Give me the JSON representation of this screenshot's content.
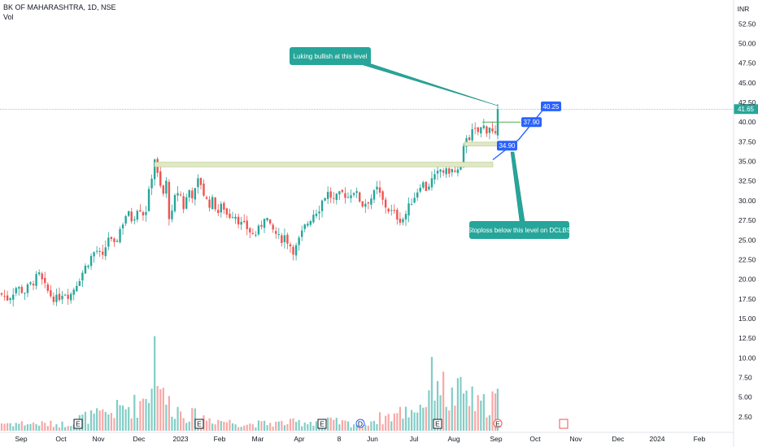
{
  "header": {
    "symbol": "BK OF MAHARASHTRA, 1D, NSE",
    "vol_label": "Vol",
    "currency": "INR"
  },
  "colors": {
    "up": "#26a69a",
    "down": "#ef5350",
    "vol_up": "#83cdc6",
    "vol_down": "#f7a9a7",
    "last_price": "#26a69a",
    "callout": "#26a69a",
    "target_tag": "#2962ff"
  },
  "chart_data": {
    "type": "candlestick",
    "series_name": "BK OF MAHARASHTRA",
    "y_ticks": [
      "2.50",
      "5.00",
      "7.50",
      "10.00",
      "12.50",
      "15.00",
      "17.50",
      "20.00",
      "22.50",
      "25.00",
      "27.50",
      "30.00",
      "32.50",
      "35.00",
      "37.50",
      "40.00",
      "42.50",
      "45.00",
      "47.50",
      "50.00",
      "52.50"
    ],
    "ylim": [
      0,
      54
    ],
    "x_ticks": [
      "Sep",
      "Oct",
      "Nov",
      "Dec",
      "2023",
      "Feb",
      "Mar",
      "Apr",
      "8",
      "Jun",
      "Jul",
      "Aug",
      "Sep",
      "Oct",
      "Nov",
      "Dec",
      "2024",
      "Feb"
    ],
    "last_price": "41.65",
    "price_path": [
      [
        0,
        18.2
      ],
      [
        10,
        17.5
      ],
      [
        20,
        19.0
      ],
      [
        30,
        18.4
      ],
      [
        40,
        19.6
      ],
      [
        48,
        20.5
      ],
      [
        55,
        19.0
      ],
      [
        62,
        18.0
      ],
      [
        70,
        17.4
      ],
      [
        78,
        18.5
      ],
      [
        86,
        17.9
      ],
      [
        94,
        19.5
      ],
      [
        102,
        21.0
      ],
      [
        110,
        22.5
      ],
      [
        118,
        23.8
      ],
      [
        126,
        22.5
      ],
      [
        133,
        25.5
      ],
      [
        140,
        24.0
      ],
      [
        148,
        26.5
      ],
      [
        156,
        28.5
      ],
      [
        163,
        27.5
      ],
      [
        170,
        29.5
      ],
      [
        178,
        28.0
      ],
      [
        184,
        31.5
      ],
      [
        190,
        35.5
      ],
      [
        194,
        33.0
      ],
      [
        200,
        30.5
      ],
      [
        205,
        32.5
      ],
      [
        209,
        26.5
      ],
      [
        214,
        30.0
      ],
      [
        220,
        31.5
      ],
      [
        226,
        29.0
      ],
      [
        232,
        31.5
      ],
      [
        238,
        30.5
      ],
      [
        245,
        33.0
      ],
      [
        250,
        31.0
      ],
      [
        256,
        29.5
      ],
      [
        262,
        30.0
      ],
      [
        268,
        28.5
      ],
      [
        274,
        29.5
      ],
      [
        280,
        28.0
      ],
      [
        288,
        28.5
      ],
      [
        296,
        27.0
      ],
      [
        304,
        26.5
      ],
      [
        312,
        25.5
      ],
      [
        320,
        26.5
      ],
      [
        326,
        28.5
      ],
      [
        332,
        26.5
      ],
      [
        338,
        26.0
      ],
      [
        344,
        25.0
      ],
      [
        350,
        25.5
      ],
      [
        356,
        24.5
      ],
      [
        362,
        23.5
      ],
      [
        368,
        25.0
      ],
      [
        374,
        26.5
      ],
      [
        380,
        27.5
      ],
      [
        386,
        28.5
      ],
      [
        392,
        29.0
      ],
      [
        398,
        30.5
      ],
      [
        404,
        31.0
      ],
      [
        410,
        30.0
      ],
      [
        416,
        30.5
      ],
      [
        422,
        31.0
      ],
      [
        428,
        30.5
      ],
      [
        434,
        31.5
      ],
      [
        440,
        30.5
      ],
      [
        446,
        29.5
      ],
      [
        452,
        30.0
      ],
      [
        458,
        30.5
      ],
      [
        464,
        31.5
      ],
      [
        470,
        30.0
      ],
      [
        476,
        29.0
      ],
      [
        482,
        28.5
      ],
      [
        488,
        28.0
      ],
      [
        494,
        27.5
      ],
      [
        500,
        28.5
      ],
      [
        506,
        30.0
      ],
      [
        512,
        31.0
      ],
      [
        518,
        32.5
      ],
      [
        524,
        31.5
      ],
      [
        530,
        32.5
      ],
      [
        536,
        33.0
      ],
      [
        542,
        34.0
      ],
      [
        548,
        33.5
      ],
      [
        554,
        34.0
      ],
      [
        560,
        33.5
      ],
      [
        566,
        34.0
      ],
      [
        570,
        36.5
      ],
      [
        574,
        38.5
      ],
      [
        578,
        38.0
      ],
      [
        582,
        39.0
      ],
      [
        586,
        38.5
      ],
      [
        590,
        39.0
      ],
      [
        594,
        39.5
      ],
      [
        598,
        39.0
      ],
      [
        602,
        39.5
      ],
      [
        606,
        38.5
      ],
      [
        610,
        38.0
      ]
    ],
    "volume_path": [
      [
        0,
        1.2
      ],
      [
        80,
        1.0
      ],
      [
        100,
        2.0
      ],
      [
        130,
        2.5
      ],
      [
        150,
        3.5
      ],
      [
        170,
        4.0
      ],
      [
        185,
        6.5
      ],
      [
        191,
        14.0
      ],
      [
        200,
        5.0
      ],
      [
        215,
        3.5
      ],
      [
        230,
        2.5
      ],
      [
        250,
        2.0
      ],
      [
        300,
        1.0
      ],
      [
        350,
        1.2
      ],
      [
        400,
        1.5
      ],
      [
        440,
        1.0
      ],
      [
        470,
        2.0
      ],
      [
        500,
        3.0
      ],
      [
        520,
        4.0
      ],
      [
        537,
        9.5
      ],
      [
        550,
        4.5
      ],
      [
        570,
        6.0
      ],
      [
        590,
        3.5
      ],
      [
        612,
        5.5
      ]
    ],
    "levels": [
      {
        "name": "breakout",
        "from": "Dec",
        "value": 34.6
      },
      {
        "name": "stoploss",
        "value": 37.2
      }
    ],
    "price_tags": [
      "40.25",
      "37.90",
      "34.90"
    ],
    "annotations": [
      "Luking bullish at this level",
      "Stoploss below this level on DCLBS"
    ],
    "event_markers": [
      "E",
      "E",
      "E",
      "D",
      "E",
      "E"
    ]
  }
}
